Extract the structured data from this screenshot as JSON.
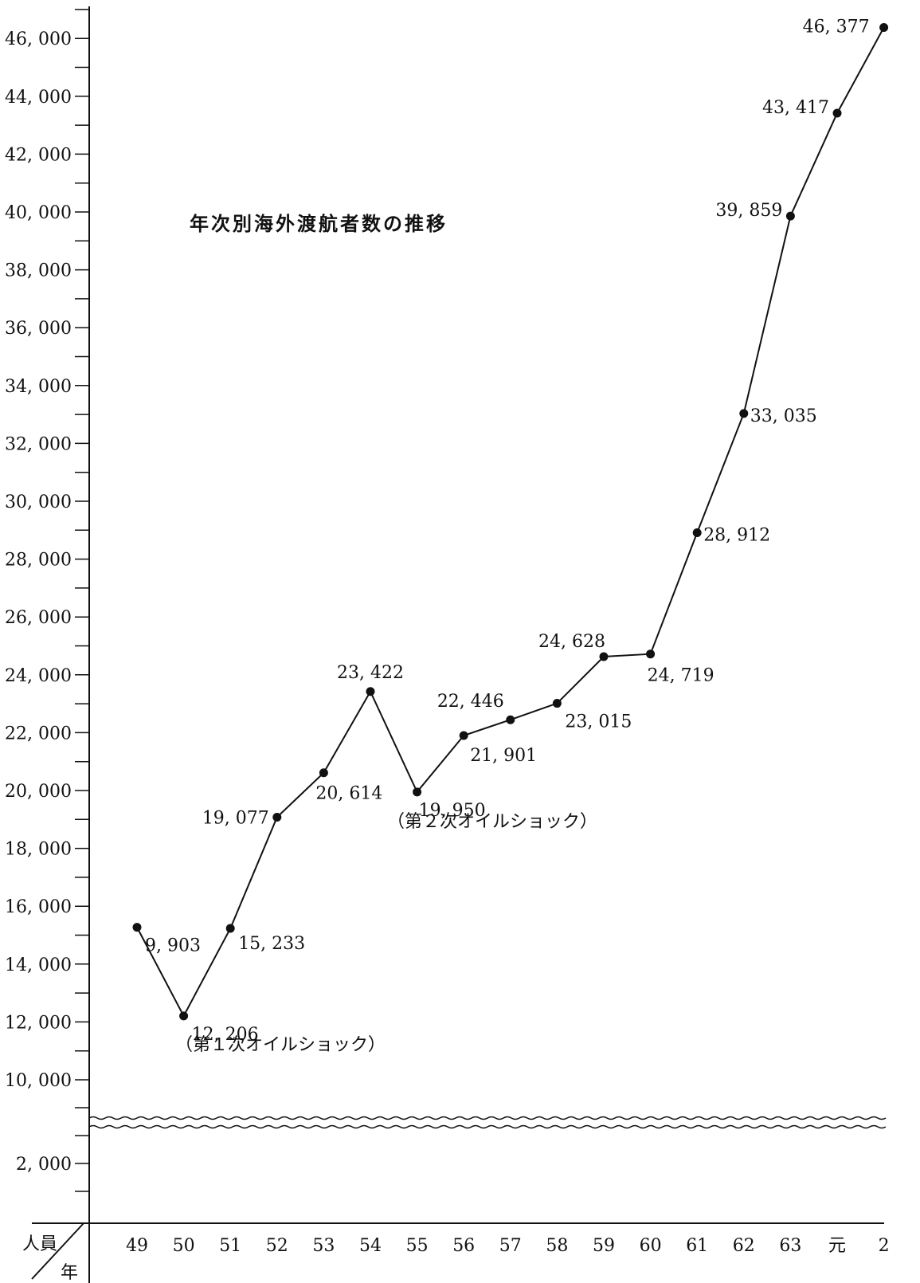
{
  "chart_data": {
    "type": "line",
    "title": "年次別海外渡航者数の推移",
    "corner_labels": {
      "y": "人員",
      "x": "年"
    },
    "categories": [
      "49",
      "50",
      "51",
      "52",
      "53",
      "54",
      "55",
      "56",
      "57",
      "58",
      "59",
      "60",
      "61",
      "62",
      "63",
      "元",
      "2"
    ],
    "values": [
      9903,
      12206,
      15233,
      19077,
      20614,
      23422,
      19950,
      21901,
      22446,
      23015,
      24628,
      24719,
      28912,
      33035,
      39859,
      43417,
      46377
    ],
    "value_labels": [
      "9, 903",
      "12, 206",
      "15, 233",
      "19, 077",
      "20, 614",
      "23, 422",
      "19, 950",
      "21, 901",
      "22, 446",
      "23, 015",
      "24, 628",
      "24, 719",
      "28, 912",
      "33, 035",
      "39, 859",
      "43, 417",
      "46, 377"
    ],
    "y_ticks": [
      {
        "value": 2000,
        "label": "2, 000"
      },
      {
        "value": 10000,
        "label": "10, 000"
      },
      {
        "value": 12000,
        "label": "12, 000"
      },
      {
        "value": 14000,
        "label": "14, 000"
      },
      {
        "value": 16000,
        "label": "16, 000"
      },
      {
        "value": 18000,
        "label": "18, 000"
      },
      {
        "value": 20000,
        "label": "20, 000"
      },
      {
        "value": 22000,
        "label": "22, 000"
      },
      {
        "value": 24000,
        "label": "24, 000"
      },
      {
        "value": 26000,
        "label": "26, 000"
      },
      {
        "value": 28000,
        "label": "28, 000"
      },
      {
        "value": 30000,
        "label": "30, 000"
      },
      {
        "value": 32000,
        "label": "32, 000"
      },
      {
        "value": 34000,
        "label": "34, 000"
      },
      {
        "value": 36000,
        "label": "36, 000"
      },
      {
        "value": 38000,
        "label": "38, 000"
      },
      {
        "value": 40000,
        "label": "40, 000"
      },
      {
        "value": 42000,
        "label": "42, 000"
      },
      {
        "value": 44000,
        "label": "44, 000"
      },
      {
        "value": 46000,
        "label": "46, 000"
      }
    ],
    "ylim": [
      10000,
      47000
    ],
    "axis_break": true,
    "annotations": [
      {
        "text": "（第１次オイルショック）",
        "category": "50"
      },
      {
        "text": "（第２次オイルショック）",
        "category": "55"
      }
    ],
    "grid": false,
    "legend": "none",
    "line_color": "#111111"
  }
}
